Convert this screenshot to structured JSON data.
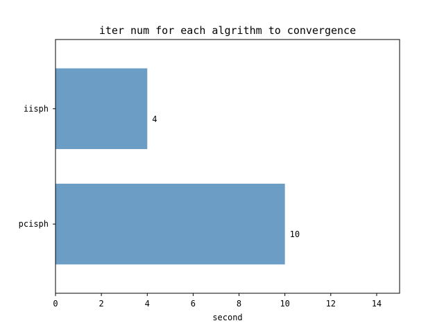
{
  "chart_data": {
    "type": "bar",
    "orientation": "horizontal",
    "title": "iter num for each algrithm to convergence",
    "xlabel": "second",
    "ylabel": "",
    "categories": [
      "iisph",
      "pcisph"
    ],
    "values": [
      4,
      10
    ],
    "data_labels": [
      "4",
      "10"
    ],
    "xlim": [
      0,
      15
    ],
    "xticks": [
      0,
      2,
      4,
      6,
      8,
      10,
      12,
      14
    ],
    "xtick_labels": [
      "0",
      "2",
      "4",
      "6",
      "8",
      "10",
      "12",
      "14"
    ],
    "grid": false,
    "legend": "none",
    "bar_color": "#6b9dc5"
  }
}
